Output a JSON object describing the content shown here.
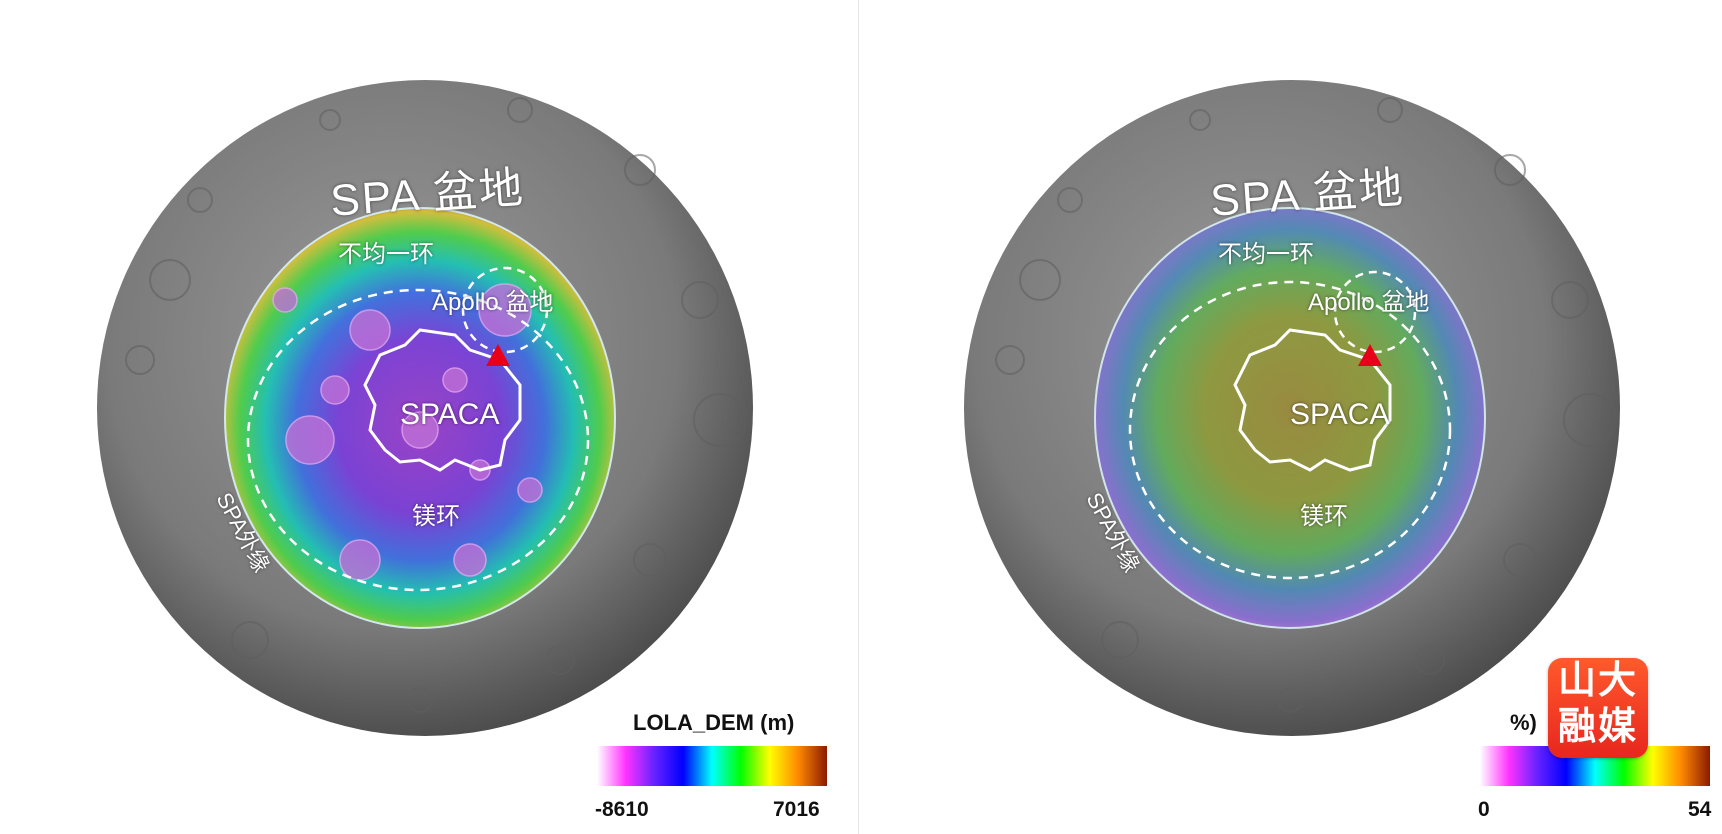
{
  "left_map": {
    "basin_label": "SPA 盆地",
    "ring_label": "不均一环",
    "apollo_label": "Apollo 盆地",
    "spaca_label": "SPACA",
    "mg_ring_label": "镁环",
    "rim_label": "SPA外缘",
    "colorbar": {
      "title": "LOLA_DEM (m)",
      "min": "-8610",
      "max": "7016",
      "colors": [
        "#ffffff",
        "#ff33ff",
        "#6622ff",
        "#0000ff",
        "#00ffff",
        "#00ff00",
        "#ffff00",
        "#ff8800",
        "#8b1a00"
      ]
    }
  },
  "right_map": {
    "basin_label": "SPA 盆地",
    "ring_label": "不均一环",
    "apollo_label": "Apollo 盆地",
    "spaca_label": "SPACA",
    "mg_ring_label": "镁环",
    "rim_label": "SPA外缘",
    "colorbar": {
      "title_visible": "%)",
      "min": "0",
      "max": "54",
      "colors": [
        "#ffffff",
        "#ff33ff",
        "#6622ff",
        "#0000ff",
        "#00ffff",
        "#00ff00",
        "#ffff00",
        "#ff8800",
        "#8b1a00"
      ]
    }
  },
  "logo": {
    "line1": "山大",
    "line2": "融媒"
  },
  "colors": {
    "moon": "#7b7b7b",
    "marker": "#e8001a",
    "logo": "#e8261e"
  }
}
